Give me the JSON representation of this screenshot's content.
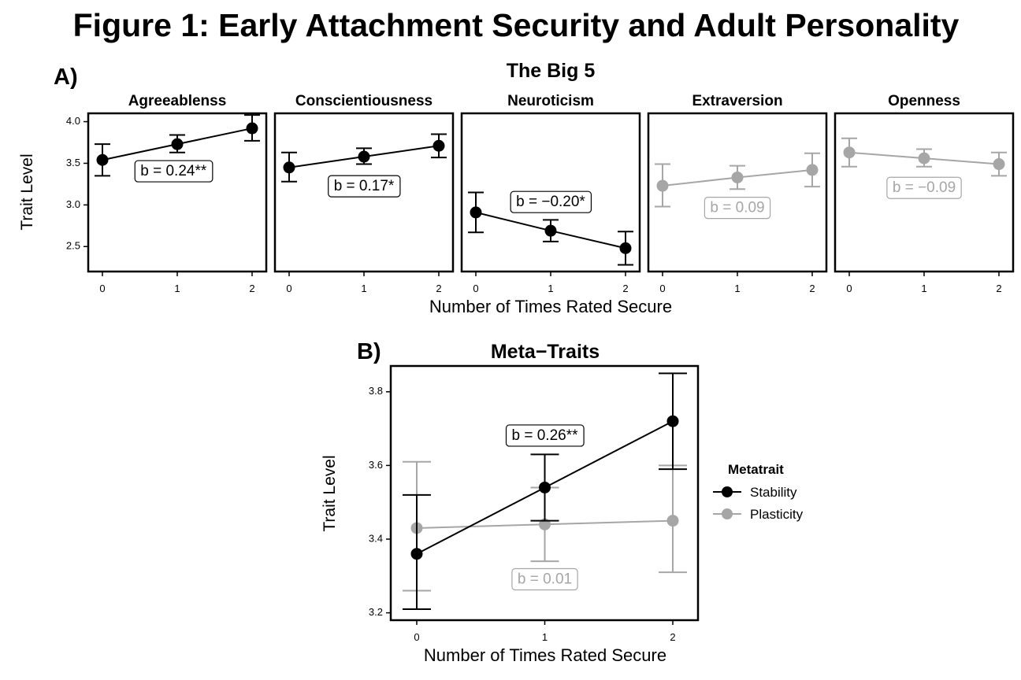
{
  "figure": {
    "title": "Figure 1: Early Attachment Security and Adult Personality",
    "panel_a_label": "A)",
    "panel_a_title": "The Big 5",
    "panel_b_label": "B)",
    "panel_b_title": "Meta−Traits"
  },
  "colors": {
    "significant": "#000000",
    "nonsignificant": "#a6a6a6"
  },
  "chart_data": [
    {
      "type": "line",
      "panel": "A",
      "title": "The Big 5",
      "xlabel": "Number of Times Rated Secure",
      "ylabel": "Trait Level",
      "x": [
        0,
        1,
        2
      ],
      "x_ticks": [
        "0",
        "1",
        "2"
      ],
      "ylim": [
        2.2,
        4.1
      ],
      "y_ticks": [
        "2.5",
        "3.0",
        "3.5",
        "4.0"
      ],
      "y_tick_values": [
        2.5,
        3.0,
        3.5,
        4.0
      ],
      "grid": false,
      "facets": [
        {
          "name": "Agreeablenss",
          "values": [
            3.54,
            3.73,
            3.92
          ],
          "err_low": [
            3.35,
            3.63,
            3.77
          ],
          "err_high": [
            3.73,
            3.84,
            4.08
          ],
          "annotation": "b =  0.24**",
          "significant": true,
          "ann_x": 0.95,
          "ann_y": 3.4
        },
        {
          "name": "Conscientiousness",
          "values": [
            3.45,
            3.58,
            3.71
          ],
          "err_low": [
            3.28,
            3.49,
            3.57
          ],
          "err_high": [
            3.63,
            3.68,
            3.85
          ],
          "annotation": "b =  0.17*",
          "significant": true,
          "ann_x": 1.0,
          "ann_y": 3.22
        },
        {
          "name": "Neuroticism",
          "values": [
            2.91,
            2.69,
            2.48
          ],
          "err_low": [
            2.67,
            2.56,
            2.28
          ],
          "err_high": [
            3.15,
            2.82,
            2.68
          ],
          "annotation": "b =  −0.20*",
          "significant": true,
          "ann_x": 1.0,
          "ann_y": 3.03
        },
        {
          "name": "Extraversion",
          "values": [
            3.23,
            3.33,
            3.42
          ],
          "err_low": [
            2.98,
            3.19,
            3.22
          ],
          "err_high": [
            3.49,
            3.47,
            3.62
          ],
          "annotation": "b =  0.09",
          "significant": false,
          "ann_x": 1.0,
          "ann_y": 2.96
        },
        {
          "name": "Openness",
          "values": [
            3.63,
            3.56,
            3.49
          ],
          "err_low": [
            3.46,
            3.46,
            3.35
          ],
          "err_high": [
            3.8,
            3.67,
            3.63
          ],
          "annotation": "b =  −0.09",
          "significant": false,
          "ann_x": 1.0,
          "ann_y": 3.2
        }
      ]
    },
    {
      "type": "line",
      "panel": "B",
      "title": "Meta−Traits",
      "xlabel": "Number of Times Rated Secure",
      "ylabel": "Trait Level",
      "x": [
        0,
        1,
        2
      ],
      "x_ticks": [
        "0",
        "1",
        "2"
      ],
      "ylim": [
        3.18,
        3.87
      ],
      "y_ticks": [
        "3.2",
        "3.4",
        "3.6",
        "3.8"
      ],
      "y_tick_values": [
        3.2,
        3.4,
        3.6,
        3.8
      ],
      "grid": false,
      "legend": {
        "title": "Metatrait",
        "position": "right"
      },
      "series": [
        {
          "name": "Stability",
          "values": [
            3.36,
            3.54,
            3.72
          ],
          "err_low": [
            3.21,
            3.45,
            3.59
          ],
          "err_high": [
            3.52,
            3.63,
            3.85
          ],
          "annotation": "b =  0.26**",
          "significant": true,
          "ann_x": 1.0,
          "ann_y": 3.68
        },
        {
          "name": "Plasticity",
          "values": [
            3.43,
            3.44,
            3.45
          ],
          "err_low": [
            3.26,
            3.34,
            3.31
          ],
          "err_high": [
            3.61,
            3.54,
            3.6
          ],
          "annotation": "b =  0.01",
          "significant": false,
          "ann_x": 1.0,
          "ann_y": 3.29
        }
      ]
    }
  ]
}
